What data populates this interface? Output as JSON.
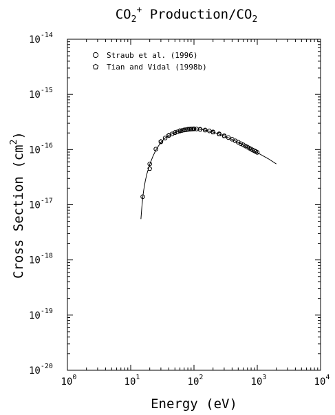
{
  "chart_data": {
    "type": "scatter",
    "title_main": "CO",
    "title_sub1": "2",
    "title_sup": "+",
    "title_mid": " Production/CO",
    "title_sub2": "2",
    "xlabel": "Energy (eV)",
    "ylabel_main": "Cross Section (cm",
    "ylabel_sup": "2",
    "ylabel_end": ")",
    "xscale": "log",
    "yscale": "log",
    "xlim": [
      1,
      10000
    ],
    "ylim": [
      1e-20,
      1e-14
    ],
    "x_tick_labels": [
      {
        "base": "10",
        "exp": "0"
      },
      {
        "base": "10",
        "exp": "1"
      },
      {
        "base": "10",
        "exp": "2"
      },
      {
        "base": "10",
        "exp": "3"
      },
      {
        "base": "10",
        "exp": "4"
      }
    ],
    "y_tick_labels": [
      {
        "base": "10",
        "exp": "-20"
      },
      {
        "base": "10",
        "exp": "-19"
      },
      {
        "base": "10",
        "exp": "-18"
      },
      {
        "base": "10",
        "exp": "-17"
      },
      {
        "base": "10",
        "exp": "-16"
      },
      {
        "base": "10",
        "exp": "-15"
      },
      {
        "base": "10",
        "exp": "-14"
      }
    ],
    "legend": {
      "placement": "top-left",
      "entries": [
        {
          "label": "Straub et al. (1996)",
          "marker": "circle"
        },
        {
          "label": "Tian and Vidal (1998b)",
          "marker": "pentagon"
        }
      ]
    },
    "series": [
      {
        "name": "Straub et al. (1996)",
        "marker": "circle",
        "points": [
          [
            15.5,
            1.4e-17
          ],
          [
            20,
            5.5e-17
          ],
          [
            25,
            1.02e-16
          ],
          [
            30,
            1.38e-16
          ],
          [
            35,
            1.62e-16
          ],
          [
            40,
            1.8e-16
          ],
          [
            45,
            1.92e-16
          ],
          [
            50,
            2.02e-16
          ],
          [
            55,
            2.1e-16
          ],
          [
            60,
            2.17e-16
          ],
          [
            65,
            2.22e-16
          ],
          [
            70,
            2.26e-16
          ],
          [
            75,
            2.29e-16
          ],
          [
            80,
            2.32e-16
          ],
          [
            85,
            2.34e-16
          ],
          [
            90,
            2.35e-16
          ],
          [
            95,
            2.36e-16
          ],
          [
            100,
            2.37e-16
          ],
          [
            110,
            2.36e-16
          ],
          [
            125,
            2.33e-16
          ],
          [
            150,
            2.26e-16
          ],
          [
            175,
            2.18e-16
          ],
          [
            200,
            2.09e-16
          ],
          [
            250,
            1.93e-16
          ],
          [
            300,
            1.78e-16
          ],
          [
            350,
            1.65e-16
          ],
          [
            400,
            1.54e-16
          ],
          [
            450,
            1.44e-16
          ],
          [
            500,
            1.36e-16
          ],
          [
            550,
            1.28e-16
          ],
          [
            600,
            1.22e-16
          ],
          [
            650,
            1.16e-16
          ],
          [
            700,
            1.11e-16
          ],
          [
            750,
            1.06e-16
          ],
          [
            800,
            1.02e-16
          ],
          [
            850,
            9.8e-17
          ],
          [
            900,
            9.5e-17
          ],
          [
            950,
            9.2e-17
          ],
          [
            1000,
            8.9e-17
          ]
        ]
      },
      {
        "name": "Tian and Vidal (1998b)",
        "marker": "pentagon",
        "points": [
          [
            20,
            4.5e-17
          ],
          [
            30,
            1.4e-16
          ],
          [
            40,
            1.82e-16
          ],
          [
            50,
            2.05e-16
          ],
          [
            60,
            2.2e-16
          ],
          [
            70,
            2.28e-16
          ],
          [
            80,
            2.33e-16
          ],
          [
            90,
            2.36e-16
          ],
          [
            100,
            2.37e-16
          ],
          [
            125,
            2.32e-16
          ],
          [
            150,
            2.24e-16
          ],
          [
            200,
            2.06e-16
          ],
          [
            250,
            1.9e-16
          ],
          [
            300,
            1.76e-16
          ]
        ]
      },
      {
        "name": "",
        "style": "line",
        "points": [
          [
            14.5,
            5.5e-18
          ],
          [
            15,
            9e-18
          ],
          [
            15.5,
            1.35e-17
          ],
          [
            16,
            1.8e-17
          ],
          [
            17,
            2.7e-17
          ],
          [
            18,
            3.6e-17
          ],
          [
            20,
            5.4e-17
          ],
          [
            22.5,
            7.6e-17
          ],
          [
            25,
            9.8e-17
          ],
          [
            30,
            1.36e-16
          ],
          [
            35,
            1.62e-16
          ],
          [
            40,
            1.81e-16
          ],
          [
            50,
            2.04e-16
          ],
          [
            60,
            2.18e-16
          ],
          [
            70,
            2.27e-16
          ],
          [
            80,
            2.33e-16
          ],
          [
            90,
            2.36e-16
          ],
          [
            100,
            2.37e-16
          ],
          [
            125,
            2.33e-16
          ],
          [
            150,
            2.25e-16
          ],
          [
            200,
            2.08e-16
          ],
          [
            300,
            1.77e-16
          ],
          [
            400,
            1.53e-16
          ],
          [
            500,
            1.35e-16
          ],
          [
            700,
            1.1e-16
          ],
          [
            1000,
            8.8e-17
          ],
          [
            1500,
            6.8e-17
          ],
          [
            2000,
            5.5e-17
          ]
        ]
      }
    ]
  }
}
